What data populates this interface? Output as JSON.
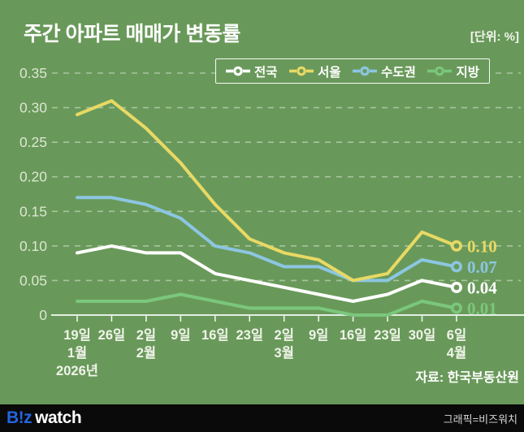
{
  "header": {
    "title": "주간 아파트 매매가 변동률",
    "unit": "[단위: %]"
  },
  "source": {
    "label": "자료: 한국부동산원"
  },
  "footer": {
    "logo_biz": "B!z",
    "logo_watch": "watch",
    "credit": "그래픽=비즈워치"
  },
  "colors": {
    "background": "#69995A",
    "grid": "rgba(255,255,255,0.42)",
    "axis": "rgba(255,255,255,0.95)",
    "ytick_text": "#DCE6D2",
    "xtick_text": "#F0F4EA",
    "footer_bg": "#0A0A0A",
    "logo_blue": "#2465E0"
  },
  "chart_data": {
    "type": "line",
    "title": "주간 아파트 매매가 변동률",
    "unit": "%",
    "ylim": [
      0,
      0.35
    ],
    "grid": true,
    "legend_position": "top",
    "yticks": {
      "values": [
        0,
        0.05,
        0.1,
        0.15,
        0.2,
        0.25,
        0.3,
        0.35
      ],
      "labels": [
        "0",
        "0.05",
        "0.10",
        "0.15",
        "0.20",
        "0.25",
        "0.30",
        "0.35"
      ]
    },
    "categories": [
      "19일",
      "26일",
      "2일",
      "9일",
      "16일",
      "23일",
      "2일",
      "9일",
      "16일",
      "23일",
      "30일",
      "6일"
    ],
    "month_labels": [
      {
        "index": 0,
        "text": "1월"
      },
      {
        "index": 2,
        "text": "2월"
      },
      {
        "index": 6,
        "text": "3월"
      },
      {
        "index": 11,
        "text": "4월"
      }
    ],
    "year_label": {
      "index": 0,
      "text": "2026년"
    },
    "series": [
      {
        "key": "nationwide",
        "name": "전국",
        "color": "#FFFFFF",
        "values": [
          0.09,
          0.1,
          0.09,
          0.09,
          0.06,
          0.05,
          0.04,
          0.03,
          0.02,
          0.03,
          0.05,
          0.04
        ],
        "end_label": "0.04"
      },
      {
        "key": "seoul",
        "name": "서울",
        "color": "#E8D964",
        "values": [
          0.29,
          0.31,
          0.27,
          0.22,
          0.16,
          0.11,
          0.09,
          0.08,
          0.05,
          0.06,
          0.12,
          0.1
        ],
        "end_label": "0.10"
      },
      {
        "key": "metro",
        "name": "수도권",
        "color": "#8CC6E2",
        "values": [
          0.17,
          0.17,
          0.16,
          0.14,
          0.1,
          0.09,
          0.07,
          0.07,
          0.05,
          0.05,
          0.08,
          0.07
        ],
        "end_label": "0.07"
      },
      {
        "key": "regional",
        "name": "지방",
        "color": "#7AC77D",
        "values": [
          0.02,
          0.02,
          0.02,
          0.03,
          0.02,
          0.01,
          0.01,
          0.01,
          0.0,
          0.0,
          0.02,
          0.01
        ],
        "end_label": "0.01"
      }
    ]
  }
}
